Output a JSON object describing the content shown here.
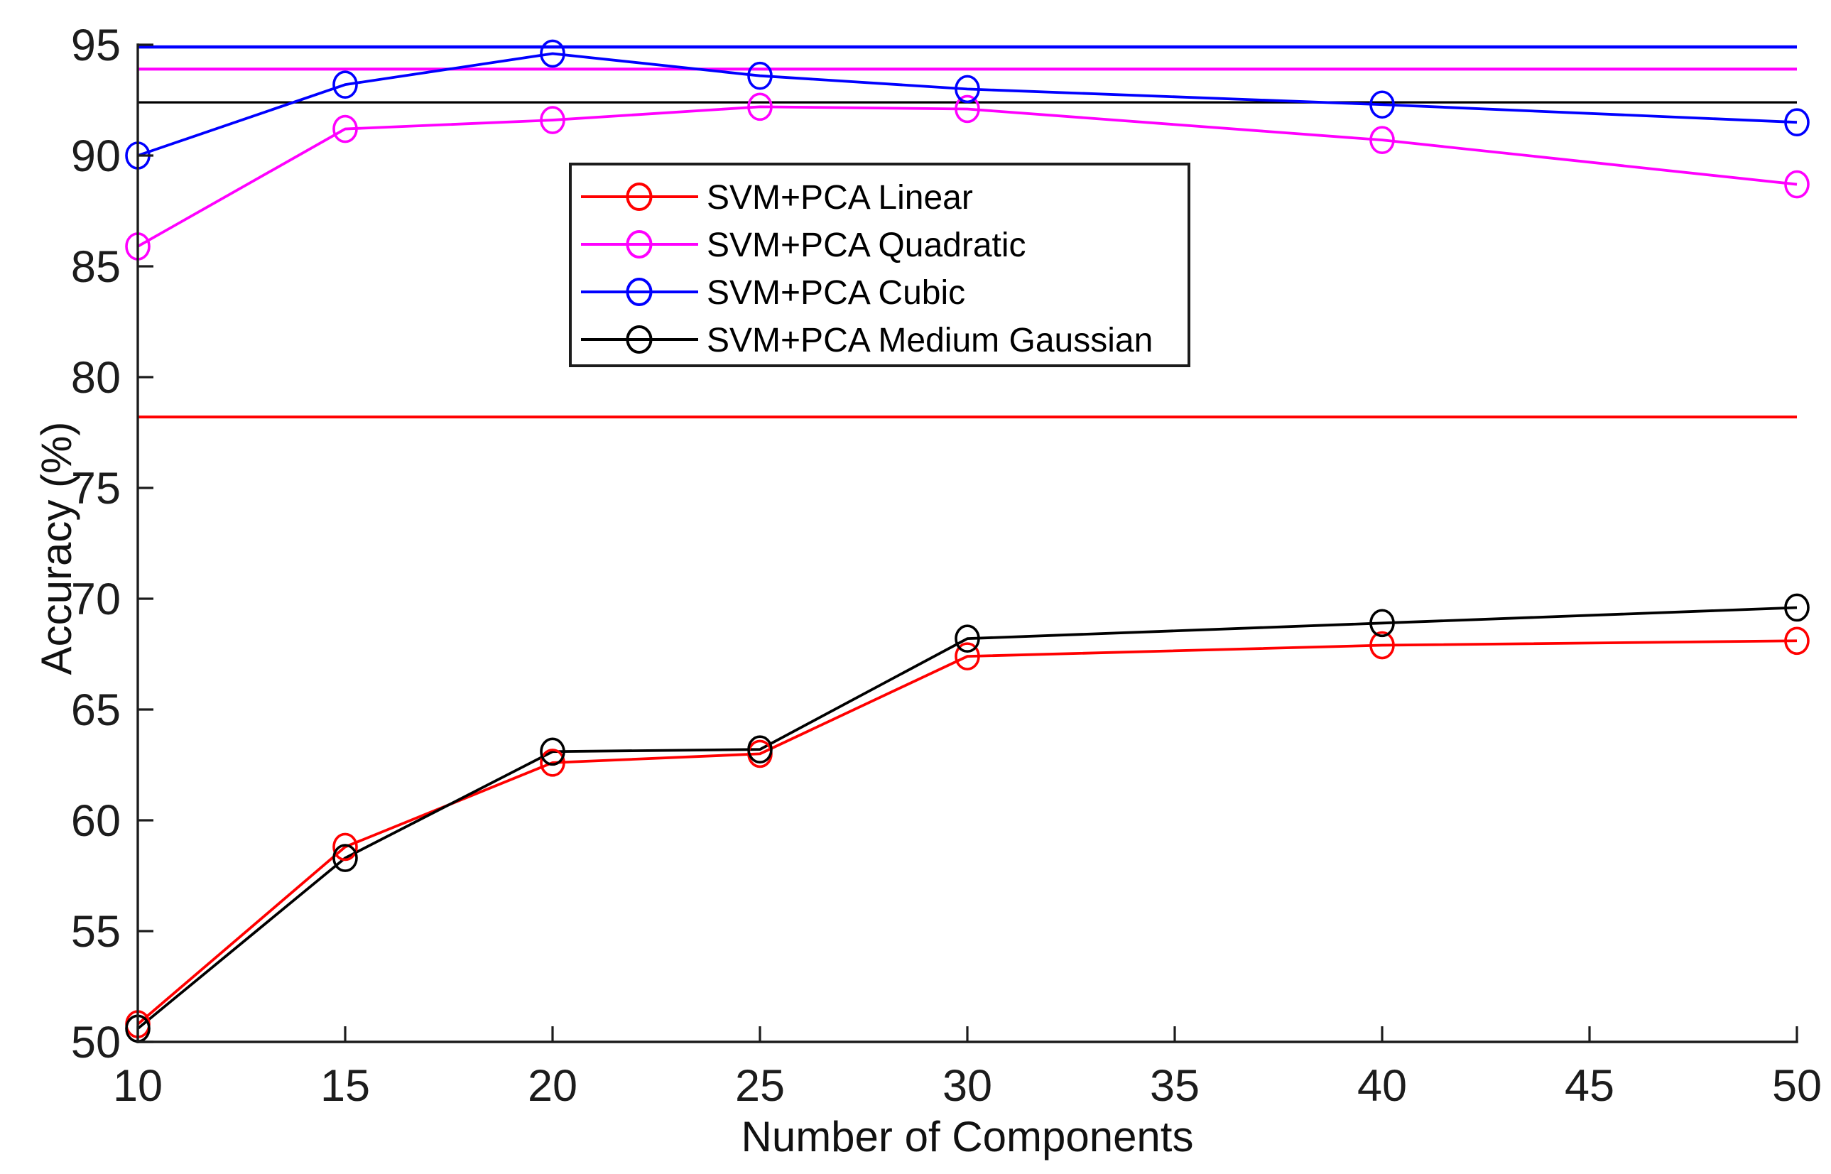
{
  "chart_data": {
    "type": "line",
    "title": "",
    "xlabel": "Number of Components",
    "ylabel": "Accuracy (%)",
    "xlim": [
      10,
      50
    ],
    "ylim": [
      50,
      95
    ],
    "grid": false,
    "x_ticks": [
      "10",
      "15",
      "20",
      "25",
      "30",
      "35",
      "40",
      "45",
      "50"
    ],
    "y_ticks": [
      "50",
      "55",
      "60",
      "65",
      "70",
      "75",
      "80",
      "85",
      "90",
      "95"
    ],
    "x": [
      10,
      15,
      20,
      25,
      30,
      40,
      50
    ],
    "series": [
      {
        "name": "SVM+PCA Linear",
        "color": "#ff0000",
        "marker": "circle",
        "values": [
          50.8,
          58.8,
          62.6,
          63.0,
          67.4,
          67.9,
          68.1
        ]
      },
      {
        "name": "SVM+PCA Quadratic",
        "color": "#ff00ff",
        "marker": "circle",
        "values": [
          85.9,
          91.2,
          91.6,
          92.2,
          92.1,
          90.7,
          88.7
        ]
      },
      {
        "name": "SVM+PCA Cubic",
        "color": "#0000ff",
        "marker": "circle",
        "values": [
          90.0,
          93.2,
          94.6,
          93.6,
          93.0,
          92.3,
          91.5
        ]
      },
      {
        "name": "SVM+PCA Medium Gaussian",
        "color": "#000000",
        "marker": "circle",
        "values": [
          50.6,
          58.3,
          63.1,
          63.2,
          68.2,
          68.9,
          69.6
        ]
      }
    ],
    "horizontal_lines": [
      {
        "color": "#0000ff",
        "value": 94.9
      },
      {
        "color": "#ff00ff",
        "value": 93.9
      },
      {
        "color": "#000000",
        "value": 92.4
      },
      {
        "color": "#ff0000",
        "value": 78.2
      }
    ],
    "legend": {
      "position": "upper-middle-left",
      "border": true,
      "entries": [
        "SVM+PCA Linear",
        "SVM+PCA Quadratic",
        "SVM+PCA Cubic",
        "SVM+PCA Medium Gaussian"
      ]
    }
  }
}
